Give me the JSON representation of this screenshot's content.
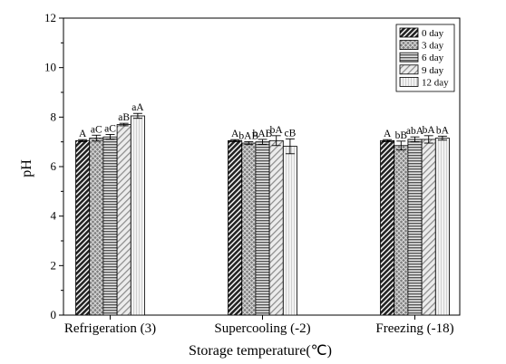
{
  "chart_data": {
    "type": "bar",
    "xlabel": "Storage temperature(℃)",
    "ylabel": "pH",
    "ylim": [
      0,
      12
    ],
    "yticks": [
      0,
      2,
      4,
      6,
      8,
      10,
      12
    ],
    "grid": false,
    "legend_position": "top-right",
    "categories": [
      "Refrigeration (3)",
      "Supercooling (-2)",
      "Freezing (-18)"
    ],
    "series": [
      {
        "name": "0 day",
        "pattern": "dense-diagonal-dark",
        "values": [
          7.05,
          7.05,
          7.05
        ],
        "errors": [
          0.04,
          0.04,
          0.04
        ],
        "labels": [
          "A",
          "A",
          "A"
        ]
      },
      {
        "name": "3 day",
        "pattern": "crosshatch",
        "values": [
          7.15,
          6.95,
          6.85
        ],
        "errors": [
          0.12,
          0.06,
          0.18
        ],
        "labels": [
          "aC",
          "bAB",
          "bB"
        ]
      },
      {
        "name": "6 day",
        "pattern": "horizontal-lines",
        "values": [
          7.2,
          7.0,
          7.1
        ],
        "errors": [
          0.1,
          0.1,
          0.1
        ],
        "labels": [
          "aC",
          "bAB",
          "abA"
        ]
      },
      {
        "name": "9 day",
        "pattern": "sparse-diagonal",
        "values": [
          7.7,
          7.05,
          7.1
        ],
        "errors": [
          0.05,
          0.2,
          0.15
        ],
        "labels": [
          "aB",
          "bA",
          "bA"
        ]
      },
      {
        "name": "12 day",
        "pattern": "light-vertical",
        "values": [
          8.05,
          6.82,
          7.15
        ],
        "errors": [
          0.1,
          0.3,
          0.08
        ],
        "labels": [
          "aA",
          "cB",
          "bA"
        ]
      }
    ]
  }
}
